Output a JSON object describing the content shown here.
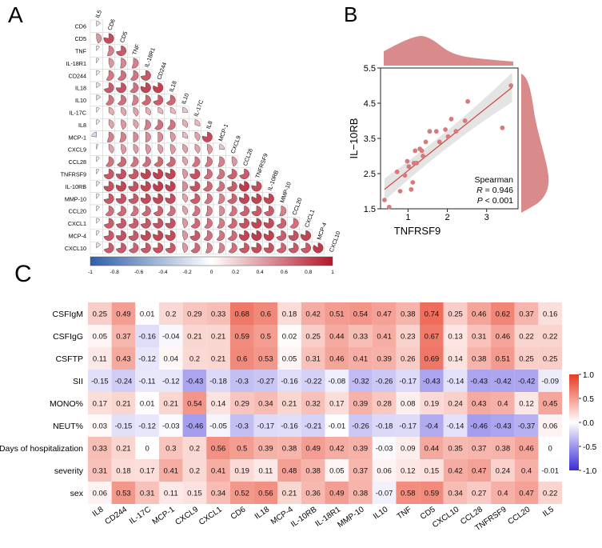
{
  "colors": {
    "neg": "#2f5ea8",
    "mid": "#ffffff",
    "pos": "#b2182b",
    "scatter": "#d77a7a",
    "scatter_line": "#cc4444",
    "density": "#d98a8a",
    "hm_neg": "#3b2bd8",
    "hm_pos": "#e83a22"
  },
  "chart_data": [
    {
      "type": "heatmap",
      "panel_label": "A",
      "title": "",
      "variables": [
        "IL5",
        "CD6",
        "CD5",
        "TNF",
        "IL-18R1",
        "CD244",
        "IL18",
        "IL10",
        "IL-17C",
        "IL8",
        "MCP-1",
        "CXCL9",
        "CCL28",
        "TNFRSF9",
        "IL-10RB",
        "MMP-10",
        "CCL20",
        "CXCL1",
        "MCP-4",
        "CXCL10"
      ],
      "values": [
        [
          0.15
        ],
        [
          0.45,
          0.78
        ],
        [
          0.1,
          0.55,
          0.72
        ],
        [
          0.08,
          0.45,
          0.52,
          0.55
        ],
        [
          0.12,
          0.58,
          0.62,
          0.6,
          0.72
        ],
        [
          0.15,
          0.7,
          0.75,
          0.62,
          0.8,
          0.82
        ],
        [
          0.15,
          0.6,
          0.62,
          0.55,
          0.65,
          0.7,
          0.65
        ],
        [
          0.1,
          0.35,
          0.38,
          0.4,
          0.35,
          0.3,
          0.3,
          0.25
        ],
        [
          0.12,
          0.4,
          0.45,
          0.4,
          0.55,
          0.62,
          0.6,
          0.35,
          0.3
        ],
        [
          -0.22,
          0.55,
          0.55,
          0.5,
          0.5,
          0.5,
          0.45,
          0.3,
          0.4,
          0.78
        ],
        [
          0.05,
          0.4,
          0.45,
          0.42,
          0.45,
          0.42,
          0.45,
          0.4,
          0.4,
          0.45,
          0.25
        ],
        [
          0.1,
          0.6,
          0.65,
          0.6,
          0.62,
          0.65,
          0.65,
          0.4,
          0.6,
          0.58,
          0.55,
          0.45
        ],
        [
          0.08,
          0.72,
          0.75,
          0.72,
          0.8,
          0.82,
          0.8,
          0.45,
          0.75,
          0.62,
          0.6,
          0.68,
          0.7
        ],
        [
          0.12,
          0.75,
          0.8,
          0.75,
          0.8,
          0.85,
          0.82,
          0.5,
          0.75,
          0.65,
          0.62,
          0.7,
          0.85,
          0.78
        ],
        [
          0.1,
          0.72,
          0.75,
          0.72,
          0.78,
          0.8,
          0.78,
          0.4,
          0.7,
          0.6,
          0.55,
          0.68,
          0.8,
          0.82,
          0.8
        ],
        [
          0.1,
          0.62,
          0.65,
          0.6,
          0.65,
          0.68,
          0.62,
          0.4,
          0.6,
          0.55,
          0.5,
          0.6,
          0.68,
          0.72,
          0.7,
          0.55
        ],
        [
          0.12,
          0.7,
          0.72,
          0.7,
          0.72,
          0.75,
          0.75,
          0.45,
          0.65,
          0.6,
          0.58,
          0.65,
          0.75,
          0.8,
          0.78,
          0.68,
          0.62
        ],
        [
          0.1,
          0.72,
          0.75,
          0.72,
          0.78,
          0.8,
          0.78,
          0.45,
          0.72,
          0.62,
          0.6,
          0.65,
          0.8,
          0.85,
          0.82,
          0.7,
          0.75,
          0.8
        ],
        [
          0.15,
          0.7,
          0.72,
          0.68,
          0.72,
          0.75,
          0.72,
          0.45,
          0.65,
          0.55,
          0.55,
          0.62,
          0.72,
          0.78,
          0.75,
          0.68,
          0.72,
          0.72,
          0.85
        ]
      ],
      "colorbar": {
        "ticks": [
          "-1",
          "-0.8",
          "-0.6",
          "-0.4",
          "-0.2",
          "0",
          "0.2",
          "0.4",
          "0.6",
          "0.8",
          "1"
        ],
        "range": [
          -1,
          1
        ]
      }
    },
    {
      "type": "scatter",
      "panel_label": "B",
      "xlabel": "TNFRSF9",
      "ylabel": "IL−10RB",
      "xlim": [
        0.3,
        3.8
      ],
      "ylim": [
        1.5,
        5.5
      ],
      "xticks": [
        1,
        2,
        3
      ],
      "yticks": [
        "1.5",
        "2.5",
        "3.5",
        "4.5",
        "5.5"
      ],
      "x": [
        0.4,
        0.52,
        0.72,
        0.8,
        0.92,
        0.98,
        1.02,
        1.08,
        1.12,
        1.15,
        1.18,
        1.22,
        1.3,
        1.35,
        1.38,
        1.45,
        1.55,
        1.72,
        1.8,
        1.95,
        2.02,
        2.1,
        2.22,
        2.45,
        2.52,
        3.4,
        3.62
      ],
      "y": [
        1.75,
        1.55,
        2.55,
        2.0,
        2.45,
        2.85,
        2.7,
        2.05,
        2.25,
        2.8,
        3.15,
        2.8,
        3.2,
        3.15,
        3.0,
        3.4,
        3.7,
        3.7,
        3.4,
        3.75,
        3.55,
        4.05,
        3.7,
        4.0,
        4.55,
        3.8,
        5.0
      ],
      "fit": {
        "x": [
          0.4,
          3.65
        ],
        "y": [
          2.05,
          4.95
        ]
      },
      "annotation": {
        "method": "Spearman",
        "r_label": "R",
        "r_value": " = 0.946",
        "p_label": "P",
        "p_value": " < 0.001"
      }
    },
    {
      "type": "heatmap",
      "panel_label": "C",
      "rows": [
        "CSFIgM",
        "CSFIgG",
        "CSFTP",
        "SII",
        "MONO%",
        "NEUT%",
        "Days of hospitalization",
        "severity",
        "sex"
      ],
      "columns": [
        "IL8",
        "CD244",
        "IL-17C",
        "MCP-1",
        "CXCL9",
        "CXCL1",
        "CD6",
        "IL18",
        "MCP-4",
        "IL-10RB",
        "IL-18R1",
        "MMP-10",
        "IL10",
        "TNF",
        "CD5",
        "CXCL10",
        "CCL28",
        "TNFRSF9",
        "CCL20",
        "IL5"
      ],
      "values": [
        [
          0.25,
          0.49,
          0.01,
          0.2,
          0.29,
          0.33,
          0.68,
          0.6,
          0.18,
          0.42,
          0.51,
          0.54,
          0.47,
          0.38,
          0.74,
          0.25,
          0.46,
          0.62,
          0.37,
          0.16
        ],
        [
          0.05,
          0.37,
          -0.16,
          -0.04,
          0.21,
          0.21,
          0.59,
          0.5,
          0.02,
          0.25,
          0.44,
          0.33,
          0.41,
          0.23,
          0.67,
          0.13,
          0.31,
          0.46,
          0.22,
          0.22
        ],
        [
          0.11,
          0.43,
          -0.12,
          0.04,
          0.2,
          0.21,
          0.6,
          0.53,
          0.05,
          0.31,
          0.46,
          0.41,
          0.39,
          0.26,
          0.69,
          0.14,
          0.38,
          0.51,
          0.25,
          0.25
        ],
        [
          -0.15,
          -0.24,
          -0.11,
          -0.12,
          -0.43,
          -0.18,
          -0.3,
          -0.27,
          -0.16,
          -0.22,
          -0.08,
          -0.32,
          -0.26,
          -0.17,
          -0.43,
          -0.14,
          -0.43,
          -0.42,
          -0.42,
          -0.09
        ],
        [
          0.17,
          0.21,
          0.01,
          0.21,
          0.54,
          0.14,
          0.29,
          0.34,
          0.21,
          0.32,
          0.17,
          0.39,
          0.28,
          0.08,
          0.19,
          0.24,
          0.43,
          0.4,
          0.12,
          0.45
        ],
        [
          0.03,
          -0.15,
          -0.12,
          -0.03,
          -0.46,
          -0.05,
          -0.3,
          -0.17,
          -0.16,
          -0.21,
          -0.01,
          -0.26,
          -0.18,
          -0.17,
          -0.4,
          -0.14,
          -0.46,
          -0.43,
          -0.37,
          0.06
        ],
        [
          0.33,
          0.21,
          0,
          0.3,
          0.2,
          0.56,
          0.5,
          0.39,
          0.38,
          0.49,
          0.42,
          0.39,
          -0.03,
          0.09,
          0.44,
          0.35,
          0.37,
          0.38,
          0.46,
          0
        ],
        [
          0.31,
          0.18,
          0.17,
          0.41,
          0.2,
          0.41,
          0.19,
          0.11,
          0.48,
          0.38,
          0.05,
          0.37,
          0.06,
          0.12,
          0.15,
          0.42,
          0.47,
          0.24,
          0.4,
          -0.01
        ],
        [
          0.06,
          0.53,
          0.31,
          0.11,
          0.15,
          0.34,
          0.52,
          0.56,
          0.21,
          0.36,
          0.49,
          0.38,
          -0.07,
          0.58,
          0.59,
          0.34,
          0.27,
          0.4,
          0.47,
          0.22
        ]
      ],
      "colorbar": {
        "ticks": [
          "1.0",
          "0.5",
          "0.0",
          "-0.5",
          "-1.0"
        ],
        "range": [
          -1,
          1
        ]
      }
    }
  ]
}
